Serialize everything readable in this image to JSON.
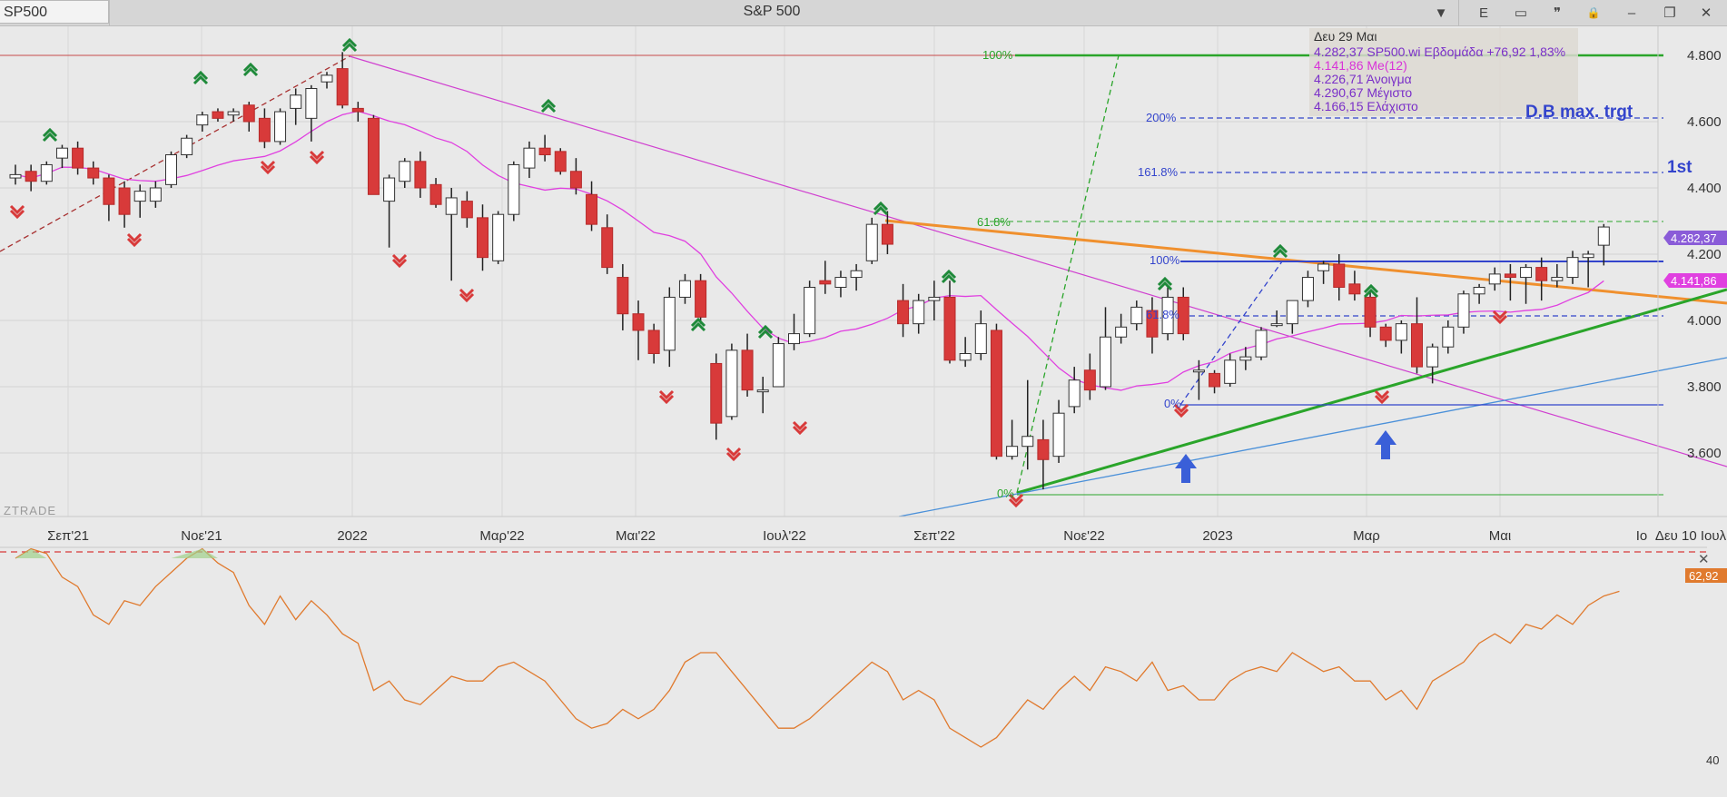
{
  "toolbar": {
    "symbol": "SP500",
    "title": "S&P 500",
    "buttons": [
      {
        "name": "dropdown-button",
        "icon": "chevron-down-icon",
        "glyph": "▼"
      },
      {
        "name": "exchange-button",
        "icon": "letter-e-icon",
        "glyph": "E"
      },
      {
        "name": "layout-button",
        "icon": "panel-icon",
        "glyph": "▭"
      },
      {
        "name": "quote-button",
        "icon": "quote-icon",
        "glyph": "❞"
      },
      {
        "name": "lock-button",
        "icon": "lock-icon",
        "glyph": "🔒"
      },
      {
        "name": "minimize-button",
        "icon": "minimize-icon",
        "glyph": "–"
      },
      {
        "name": "restore-button",
        "icon": "restore-icon",
        "glyph": "❐"
      },
      {
        "name": "close-button",
        "icon": "close-icon",
        "glyph": "✕"
      }
    ]
  },
  "info_panel": {
    "date": "Δευ 29 Μαι",
    "line1": "4.282,37 SP500.wi Εβδομάδα +76,92 1,83%",
    "line2": "4.141,86 Me(12)",
    "line3": "4.226,71 Άνοιγμα",
    "line4": "4.290,67 Μέγιστο",
    "line5": "4.166,15 Ελάχιστο"
  },
  "annotations": {
    "db_target": "D.B max. trgt",
    "first_target": "1st",
    "fib_upper": [
      "100%",
      "61.8%",
      "0%"
    ],
    "fib_right": [
      "200%",
      "161.8%",
      "100%",
      "61.8%",
      "0%"
    ]
  },
  "price_labels": {
    "last": "4.282,37",
    "ma": "4.141,86",
    "rsi": "62,92",
    "rsi_tick": "40"
  },
  "brand": "ZTRADE",
  "colors": {
    "up_body": "#ffffff",
    "down_body": "#d83a3a",
    "ma_line": "#e040e0",
    "orange_trend": "#f0902e",
    "green_trend": "#2aa52a",
    "blue_trend": "#4a90d9",
    "fib_blue": "#3344cc",
    "rsi_line": "#e07a2e",
    "last_price_badge": "#8a5cd8",
    "ma_badge": "#e040e0"
  },
  "chart_data": {
    "type": "candlestick",
    "timeframe": "weekly",
    "y_axis_ticks": [
      "4.800",
      "4.600",
      "4.400",
      "4.200",
      "4.000",
      "3.800",
      "3.600"
    ],
    "y_axis_values": [
      4800,
      4600,
      4400,
      4200,
      4000,
      3800,
      3600
    ],
    "x_axis_labels": [
      "Σεπ'21",
      "Νοε'21",
      "2022",
      "Μαρ'22",
      "Μαι'22",
      "Ιουλ'22",
      "Σεπ'22",
      "Νοε'22",
      "2023",
      "Μαρ",
      "Μαι",
      "Ιο",
      "Δευ 10 Ιουλ"
    ],
    "candles": [
      {
        "o": 4430,
        "h": 4470,
        "l": 4410,
        "c": 4440
      },
      {
        "o": 4450,
        "h": 4470,
        "l": 4390,
        "c": 4420
      },
      {
        "o": 4420,
        "h": 4480,
        "l": 4410,
        "c": 4470
      },
      {
        "o": 4490,
        "h": 4530,
        "l": 4460,
        "c": 4520
      },
      {
        "o": 4520,
        "h": 4540,
        "l": 4440,
        "c": 4460
      },
      {
        "o": 4460,
        "h": 4480,
        "l": 4410,
        "c": 4430
      },
      {
        "o": 4430,
        "h": 4440,
        "l": 4300,
        "c": 4350
      },
      {
        "o": 4400,
        "h": 4420,
        "l": 4280,
        "c": 4320
      },
      {
        "o": 4360,
        "h": 4410,
        "l": 4310,
        "c": 4390
      },
      {
        "o": 4360,
        "h": 4420,
        "l": 4340,
        "c": 4400
      },
      {
        "o": 4410,
        "h": 4510,
        "l": 4400,
        "c": 4500
      },
      {
        "o": 4500,
        "h": 4560,
        "l": 4490,
        "c": 4550
      },
      {
        "o": 4590,
        "h": 4630,
        "l": 4570,
        "c": 4620
      },
      {
        "o": 4630,
        "h": 4640,
        "l": 4600,
        "c": 4610
      },
      {
        "o": 4620,
        "h": 4640,
        "l": 4600,
        "c": 4630
      },
      {
        "o": 4650,
        "h": 4660,
        "l": 4570,
        "c": 4600
      },
      {
        "o": 4610,
        "h": 4640,
        "l": 4520,
        "c": 4540
      },
      {
        "o": 4540,
        "h": 4640,
        "l": 4530,
        "c": 4630
      },
      {
        "o": 4640,
        "h": 4700,
        "l": 4590,
        "c": 4680
      },
      {
        "o": 4610,
        "h": 4710,
        "l": 4540,
        "c": 4700
      },
      {
        "o": 4720,
        "h": 4750,
        "l": 4700,
        "c": 4740
      },
      {
        "o": 4760,
        "h": 4810,
        "l": 4640,
        "c": 4650
      },
      {
        "o": 4640,
        "h": 4660,
        "l": 4600,
        "c": 4630
      },
      {
        "o": 4610,
        "h": 4620,
        "l": 4380,
        "c": 4380
      },
      {
        "o": 4360,
        "h": 4440,
        "l": 4220,
        "c": 4430
      },
      {
        "o": 4420,
        "h": 4490,
        "l": 4400,
        "c": 4480
      },
      {
        "o": 4480,
        "h": 4510,
        "l": 4370,
        "c": 4400
      },
      {
        "o": 4410,
        "h": 4430,
        "l": 4340,
        "c": 4350
      },
      {
        "o": 4320,
        "h": 4400,
        "l": 4120,
        "c": 4370
      },
      {
        "o": 4360,
        "h": 4390,
        "l": 4280,
        "c": 4310
      },
      {
        "o": 4310,
        "h": 4350,
        "l": 4150,
        "c": 4190
      },
      {
        "o": 4180,
        "h": 4330,
        "l": 4170,
        "c": 4320
      },
      {
        "o": 4320,
        "h": 4480,
        "l": 4300,
        "c": 4470
      },
      {
        "o": 4460,
        "h": 4540,
        "l": 4430,
        "c": 4520
      },
      {
        "o": 4520,
        "h": 4560,
        "l": 4480,
        "c": 4500
      },
      {
        "o": 4510,
        "h": 4520,
        "l": 4440,
        "c": 4450
      },
      {
        "o": 4450,
        "h": 4490,
        "l": 4380,
        "c": 4400
      },
      {
        "o": 4380,
        "h": 4420,
        "l": 4270,
        "c": 4290
      },
      {
        "o": 4280,
        "h": 4320,
        "l": 4140,
        "c": 4160
      },
      {
        "o": 4130,
        "h": 4170,
        "l": 3970,
        "c": 4020
      },
      {
        "o": 4020,
        "h": 4060,
        "l": 3880,
        "c": 3970
      },
      {
        "o": 3970,
        "h": 3990,
        "l": 3870,
        "c": 3900
      },
      {
        "o": 3910,
        "h": 4100,
        "l": 3860,
        "c": 4070
      },
      {
        "o": 4070,
        "h": 4140,
        "l": 4050,
        "c": 4120
      },
      {
        "o": 4120,
        "h": 4140,
        "l": 3990,
        "c": 4010
      },
      {
        "o": 3870,
        "h": 3900,
        "l": 3640,
        "c": 3690
      },
      {
        "o": 3710,
        "h": 3930,
        "l": 3700,
        "c": 3910
      },
      {
        "o": 3910,
        "h": 3960,
        "l": 3770,
        "c": 3790
      },
      {
        "o": 3790,
        "h": 3830,
        "l": 3720,
        "c": 3790
      },
      {
        "o": 3800,
        "h": 3950,
        "l": 3800,
        "c": 3930
      },
      {
        "o": 3930,
        "h": 4020,
        "l": 3910,
        "c": 3960
      },
      {
        "o": 3960,
        "h": 4120,
        "l": 3950,
        "c": 4100
      },
      {
        "o": 4120,
        "h": 4180,
        "l": 4080,
        "c": 4110
      },
      {
        "o": 4100,
        "h": 4150,
        "l": 4070,
        "c": 4130
      },
      {
        "o": 4130,
        "h": 4170,
        "l": 4090,
        "c": 4150
      },
      {
        "o": 4180,
        "h": 4310,
        "l": 4170,
        "c": 4290
      },
      {
        "o": 4290,
        "h": 4330,
        "l": 4200,
        "c": 4230
      },
      {
        "o": 4060,
        "h": 4110,
        "l": 3950,
        "c": 3990
      },
      {
        "o": 3990,
        "h": 4080,
        "l": 3960,
        "c": 4060
      },
      {
        "o": 4060,
        "h": 4120,
        "l": 4000,
        "c": 4070
      },
      {
        "o": 4070,
        "h": 4120,
        "l": 3870,
        "c": 3880
      },
      {
        "o": 3880,
        "h": 3950,
        "l": 3860,
        "c": 3900
      },
      {
        "o": 3900,
        "h": 4030,
        "l": 3880,
        "c": 3990
      },
      {
        "o": 3970,
        "h": 3990,
        "l": 3580,
        "c": 3590
      },
      {
        "o": 3590,
        "h": 3700,
        "l": 3580,
        "c": 3620
      },
      {
        "o": 3620,
        "h": 3820,
        "l": 3550,
        "c": 3650
      },
      {
        "o": 3640,
        "h": 3700,
        "l": 3490,
        "c": 3580
      },
      {
        "o": 3590,
        "h": 3760,
        "l": 3570,
        "c": 3720
      },
      {
        "o": 3740,
        "h": 3860,
        "l": 3720,
        "c": 3820
      },
      {
        "o": 3850,
        "h": 3900,
        "l": 3760,
        "c": 3790
      },
      {
        "o": 3800,
        "h": 4040,
        "l": 3790,
        "c": 3950
      },
      {
        "o": 3950,
        "h": 4020,
        "l": 3930,
        "c": 3980
      },
      {
        "o": 3990,
        "h": 4060,
        "l": 3970,
        "c": 4040
      },
      {
        "o": 4030,
        "h": 4070,
        "l": 3900,
        "c": 3950
      },
      {
        "o": 3960,
        "h": 4100,
        "l": 3940,
        "c": 4070
      },
      {
        "o": 4070,
        "h": 4100,
        "l": 3940,
        "c": 3960
      },
      {
        "o": 3850,
        "h": 3880,
        "l": 3760,
        "c": 3850
      },
      {
        "o": 3840,
        "h": 3850,
        "l": 3780,
        "c": 3800
      },
      {
        "o": 3810,
        "h": 3900,
        "l": 3800,
        "c": 3880
      },
      {
        "o": 3880,
        "h": 3920,
        "l": 3850,
        "c": 3890
      },
      {
        "o": 3890,
        "h": 3980,
        "l": 3880,
        "c": 3970
      },
      {
        "o": 3990,
        "h": 4030,
        "l": 3980,
        "c": 3990
      },
      {
        "o": 3990,
        "h": 4060,
        "l": 3960,
        "c": 4060
      },
      {
        "o": 4060,
        "h": 4150,
        "l": 4040,
        "c": 4130
      },
      {
        "o": 4150,
        "h": 4180,
        "l": 4110,
        "c": 4170
      },
      {
        "o": 4170,
        "h": 4200,
        "l": 4060,
        "c": 4100
      },
      {
        "o": 4110,
        "h": 4150,
        "l": 4060,
        "c": 4080
      },
      {
        "o": 4070,
        "h": 4090,
        "l": 3950,
        "c": 3980
      },
      {
        "o": 3980,
        "h": 3990,
        "l": 3920,
        "c": 3940
      },
      {
        "o": 3940,
        "h": 4000,
        "l": 3900,
        "c": 3990
      },
      {
        "o": 3990,
        "h": 4070,
        "l": 3840,
        "c": 3860
      },
      {
        "o": 3860,
        "h": 3930,
        "l": 3810,
        "c": 3920
      },
      {
        "o": 3920,
        "h": 4000,
        "l": 3900,
        "c": 3980
      },
      {
        "o": 3980,
        "h": 4090,
        "l": 3960,
        "c": 4080
      },
      {
        "o": 4080,
        "h": 4110,
        "l": 4050,
        "c": 4100
      },
      {
        "o": 4110,
        "h": 4160,
        "l": 4090,
        "c": 4140
      },
      {
        "o": 4140,
        "h": 4170,
        "l": 4060,
        "c": 4130
      },
      {
        "o": 4130,
        "h": 4170,
        "l": 4050,
        "c": 4160
      },
      {
        "o": 4160,
        "h": 4190,
        "l": 4060,
        "c": 4120
      },
      {
        "o": 4120,
        "h": 4170,
        "l": 4100,
        "c": 4130
      },
      {
        "o": 4130,
        "h": 4210,
        "l": 4110,
        "c": 4190
      },
      {
        "o": 4190,
        "h": 4210,
        "l": 4100,
        "c": 4200
      },
      {
        "o": 4227,
        "h": 4291,
        "l": 4166,
        "c": 4282
      }
    ],
    "ma_period": 12,
    "rsi": {
      "ylabel_tick": "40",
      "last": 62.92,
      "dashed_level": 70
    }
  }
}
